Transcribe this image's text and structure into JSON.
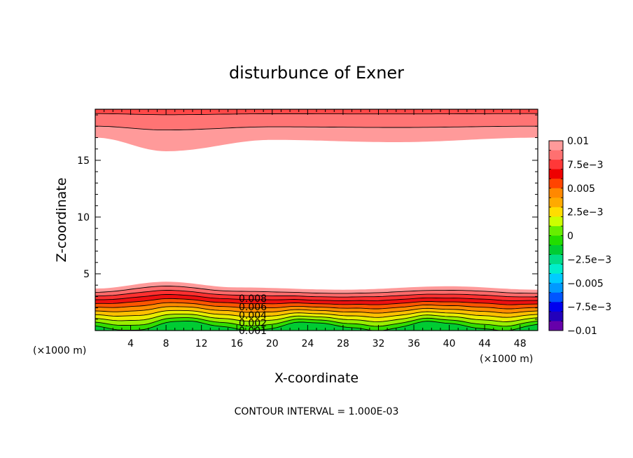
{
  "chart_data": {
    "type": "filled-contour",
    "title": "disturbunce of Exner",
    "xlabel": "X-coordinate",
    "ylabel": "Z-coordinate",
    "x_unit_left": "(×1000 m)",
    "x_unit_right": "(×1000 m)",
    "xlim": [
      0,
      50
    ],
    "ylim": [
      0,
      19.5
    ],
    "x_ticks": [
      4,
      8,
      12,
      16,
      20,
      24,
      28,
      32,
      36,
      40,
      44,
      48
    ],
    "y_ticks": [
      5,
      10,
      15
    ],
    "footer": "CONTOUR INTERVAL = 1.000E-03",
    "contour_labels": [
      "0.008",
      "0.006",
      "0.004",
      "0.002",
      "0.001"
    ],
    "contour_interval": 0.001,
    "colorbar": {
      "min": -0.01,
      "max": 0.01,
      "labels": [
        "0.01",
        "7.5e-3",
        "0.005",
        "2.5e-3",
        "0",
        "-2.5e-3",
        "-0.005",
        "-7.5e-3",
        "-0.01"
      ],
      "label_values": [
        0.01,
        0.0075,
        0.005,
        0.0025,
        0,
        -0.0025,
        -0.005,
        -0.0075,
        -0.01
      ],
      "colors_top_to_bottom": [
        "#ff9a9a",
        "#ff7070",
        "#ff3838",
        "#ee0000",
        "#ff4400",
        "#ff8800",
        "#ffaa00",
        "#ffdd00",
        "#ccff00",
        "#66ee00",
        "#22dd00",
        "#00cc33",
        "#00dd88",
        "#00eecc",
        "#00ccff",
        "#0099ff",
        "#0055ff",
        "#0000ee",
        "#2200bb",
        "#6600aa"
      ]
    },
    "top_band": {
      "contour_levels": [
        0.009,
        0.01
      ],
      "z_at_x": [
        [
          0,
          17.0
        ],
        [
          8,
          15.8
        ],
        [
          20,
          16.8
        ],
        [
          34,
          16.6
        ],
        [
          50,
          17.0
        ]
      ]
    },
    "bottom_band": {
      "contour_levels": [
        0.001,
        0.002,
        0.003,
        0.004,
        0.005,
        0.006,
        0.007,
        0.008,
        0.009
      ],
      "z_top_at_x": [
        [
          0,
          3.7
        ],
        [
          8,
          4.3
        ],
        [
          16,
          3.8
        ],
        [
          28,
          3.6
        ],
        [
          40,
          3.9
        ],
        [
          50,
          3.6
        ]
      ]
    }
  }
}
